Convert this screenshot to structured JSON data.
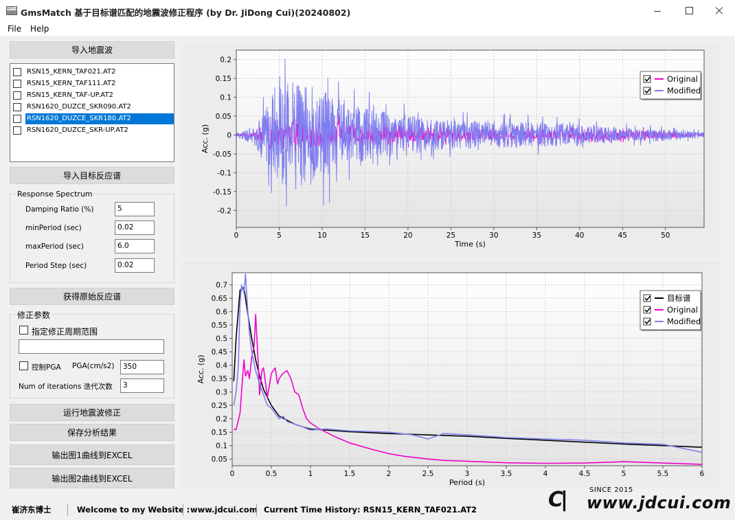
{
  "window": {
    "title": "GmsMatch 基于目标谱匹配的地震波修正程序 (by Dr. JiDong Cui)(20240802)",
    "icon_text": "MATCH"
  },
  "menu": [
    "File",
    "Help"
  ],
  "left": {
    "import_btn": "导入地震波",
    "files": [
      {
        "name": "RSN15_KERN_TAF021.AT2",
        "selected": false
      },
      {
        "name": "RSN15_KERN_TAF111.AT2",
        "selected": false
      },
      {
        "name": "RSN15_KERN_TAF-UP.AT2",
        "selected": false
      },
      {
        "name": "RSN1620_DUZCE_SKR090.AT2",
        "selected": false
      },
      {
        "name": "RSN1620_DUZCE_SKR180.AT2",
        "selected": true
      },
      {
        "name": "RSN1620_DUZCE_SKR-UP.AT2",
        "selected": false
      }
    ],
    "import_target_btn": "导入目标反应谱",
    "rs_group": {
      "title": "Response Spectrum",
      "fields": [
        {
          "label": "Damping Ratio (%)",
          "value": "5"
        },
        {
          "label": "minPeriod (sec)",
          "value": "0.02"
        },
        {
          "label": "maxPeriod (sec)",
          "value": "6.0"
        },
        {
          "label": "Period Step (sec)",
          "value": "0.02"
        }
      ]
    },
    "get_rs_btn": "获得原始反应谱",
    "mod_group": {
      "title": "修正参数",
      "period_range_label": "指定修正周期范围",
      "period_range_value": "",
      "pga_ctrl_label": "控制PGA",
      "pga_label": "PGA(cm/s2)",
      "pga_value": "350",
      "iter_label": "Num of iterations 迭代次数",
      "iter_value": "3"
    },
    "run_btn": "运行地震波修正",
    "save_btn": "保存分析结果",
    "export1_btn": "输出图1曲线到EXCEL",
    "export2_btn": "输出图2曲线到EXCEL"
  },
  "colors": {
    "original": "#ee00cc",
    "modified": "#7f7ff0",
    "target": "#000000",
    "selected": "#0078d7"
  },
  "chart_data": [
    {
      "type": "line",
      "title": "",
      "xlabel": "Time (s)",
      "ylabel": "Acc. (g)",
      "xlim": [
        0,
        54.5
      ],
      "ylim": [
        -0.245,
        0.225
      ],
      "xticks": [
        0,
        5,
        10,
        15,
        20,
        25,
        30,
        35,
        40,
        45,
        50
      ],
      "yticks": [
        0.2,
        0.15,
        0.1,
        0.05,
        0,
        -0.05,
        -0.1,
        -0.15,
        -0.2
      ],
      "ytick_labels": [
        "0.2",
        "0.15",
        "0.1",
        "0.05",
        "0",
        "-0.05",
        "-0.1",
        "-0.15",
        "-0.2"
      ],
      "grid": true,
      "legend": "top-right",
      "series": [
        {
          "name": "Original",
          "color": "#ee00cc",
          "envelope": [
            [
              0,
              0.004
            ],
            [
              2,
              0.01
            ],
            [
              3,
              0.03
            ],
            [
              4,
              0.05
            ],
            [
              5,
              0.05
            ],
            [
              6,
              0.055
            ],
            [
              7,
              0.055
            ],
            [
              8,
              0.05
            ],
            [
              10,
              0.045
            ],
            [
              12,
              0.05
            ],
            [
              14,
              0.045
            ],
            [
              16,
              0.04
            ],
            [
              18,
              0.04
            ],
            [
              20,
              0.035
            ],
            [
              25,
              0.03
            ],
            [
              30,
              0.025
            ],
            [
              35,
              0.025
            ],
            [
              38,
              0.02
            ],
            [
              40,
              0.025
            ],
            [
              42,
              0.025
            ],
            [
              45,
              0.02
            ],
            [
              50,
              0.015
            ],
            [
              54.5,
              0.005
            ]
          ]
        },
        {
          "name": "Modified",
          "color": "#7f7ff0",
          "envelope": [
            [
              0,
              0.006
            ],
            [
              2,
              0.03
            ],
            [
              3,
              0.08
            ],
            [
              4,
              0.13
            ],
            [
              5,
              0.16
            ],
            [
              6,
              0.19
            ],
            [
              7,
              0.2
            ],
            [
              8,
              0.18
            ],
            [
              10,
              0.17
            ],
            [
              11,
              0.14
            ],
            [
              12,
              0.12
            ],
            [
              14,
              0.1
            ],
            [
              16,
              0.09
            ],
            [
              20,
              0.07
            ],
            [
              22,
              0.06
            ],
            [
              25,
              0.05
            ],
            [
              28,
              0.05
            ],
            [
              30,
              0.045
            ],
            [
              35,
              0.045
            ],
            [
              38,
              0.04
            ],
            [
              40,
              0.035
            ],
            [
              42,
              0.03
            ],
            [
              45,
              0.025
            ],
            [
              50,
              0.02
            ],
            [
              54.5,
              0.01
            ]
          ]
        }
      ]
    },
    {
      "type": "line",
      "title": "",
      "xlabel": "Period (s)",
      "ylabel": "Acc. (g)",
      "xlim": [
        0,
        6
      ],
      "ylim": [
        0.025,
        0.745
      ],
      "xticks": [
        0,
        0.5,
        1,
        1.5,
        2,
        2.5,
        3,
        3.5,
        4,
        4.5,
        5,
        5.5,
        6
      ],
      "xtick_labels": [
        "0",
        "0.5",
        "1",
        "1.5",
        "2",
        "2.5",
        "3",
        "3.5",
        "4",
        "4.5",
        "5",
        "5.5",
        "6"
      ],
      "yticks": [
        0.7,
        0.65,
        0.6,
        0.55,
        0.5,
        0.45,
        0.4,
        0.35,
        0.3,
        0.25,
        0.2,
        0.15,
        0.1,
        0.05
      ],
      "ytick_labels": [
        "0.7",
        "0.65",
        "0.6",
        "0.55",
        "0.5",
        "0.45",
        "0.4",
        "0.35",
        "0.3",
        "0.25",
        "0.2",
        "0.15",
        "0.1",
        "0.05"
      ],
      "grid": true,
      "legend": "top-right",
      "series": [
        {
          "name": "目标谱",
          "color": "#000000",
          "x": [
            0.02,
            0.05,
            0.1,
            0.15,
            0.2,
            0.25,
            0.3,
            0.35,
            0.4,
            0.5,
            0.6,
            0.7,
            0.8,
            0.9,
            1.0,
            1.2,
            1.5,
            2,
            2.5,
            3,
            3.5,
            4,
            4.5,
            5,
            5.5,
            6
          ],
          "y": [
            0.34,
            0.5,
            0.68,
            0.69,
            0.59,
            0.5,
            0.42,
            0.36,
            0.31,
            0.25,
            0.21,
            0.195,
            0.18,
            0.17,
            0.162,
            0.158,
            0.152,
            0.145,
            0.14,
            0.135,
            0.127,
            0.12,
            0.113,
            0.106,
            0.1,
            0.094
          ]
        },
        {
          "name": "Original",
          "color": "#ee00cc",
          "x": [
            0.02,
            0.05,
            0.1,
            0.15,
            0.17,
            0.2,
            0.22,
            0.25,
            0.28,
            0.3,
            0.33,
            0.35,
            0.38,
            0.4,
            0.45,
            0.5,
            0.55,
            0.58,
            0.6,
            0.65,
            0.7,
            0.75,
            0.8,
            0.85,
            0.9,
            0.95,
            1.0,
            1.1,
            1.3,
            1.5,
            1.8,
            2,
            2.2,
            2.5,
            2.7,
            3,
            3.5,
            4,
            4.5,
            5,
            5.5,
            6
          ],
          "y": [
            0.16,
            0.16,
            0.22,
            0.42,
            0.36,
            0.38,
            0.35,
            0.43,
            0.47,
            0.59,
            0.42,
            0.29,
            0.38,
            0.39,
            0.28,
            0.37,
            0.39,
            0.33,
            0.35,
            0.37,
            0.38,
            0.35,
            0.3,
            0.29,
            0.24,
            0.2,
            0.185,
            0.165,
            0.135,
            0.11,
            0.085,
            0.07,
            0.06,
            0.05,
            0.045,
            0.042,
            0.036,
            0.034,
            0.035,
            0.04,
            0.035,
            0.03
          ]
        },
        {
          "name": "Modified",
          "color": "#7f7ff0",
          "x": [
            0.02,
            0.05,
            0.08,
            0.1,
            0.12,
            0.15,
            0.17,
            0.2,
            0.22,
            0.25,
            0.3,
            0.35,
            0.4,
            0.45,
            0.5,
            0.55,
            0.6,
            0.65,
            0.7,
            0.8,
            0.9,
            1.0,
            1.2,
            1.5,
            2,
            2.3,
            2.5,
            2.7,
            3,
            3.5,
            4,
            4.5,
            5,
            5.5,
            6
          ],
          "y": [
            0.25,
            0.3,
            0.4,
            0.63,
            0.7,
            0.67,
            0.74,
            0.6,
            0.52,
            0.45,
            0.38,
            0.33,
            0.29,
            0.25,
            0.24,
            0.22,
            0.2,
            0.21,
            0.19,
            0.18,
            0.17,
            0.158,
            0.162,
            0.155,
            0.15,
            0.14,
            0.125,
            0.145,
            0.14,
            0.13,
            0.125,
            0.12,
            0.11,
            0.105,
            0.075
          ]
        }
      ]
    }
  ],
  "status": {
    "author": "崔济东博士",
    "welcome": "Welcome to my Website :",
    "site": "www.jdcui.com",
    "current": "Current Time History: RSN15_KERN_TAF021.AT2"
  },
  "logo": {
    "since": "SINCE 2015",
    "url": "www.jdcui.com"
  }
}
